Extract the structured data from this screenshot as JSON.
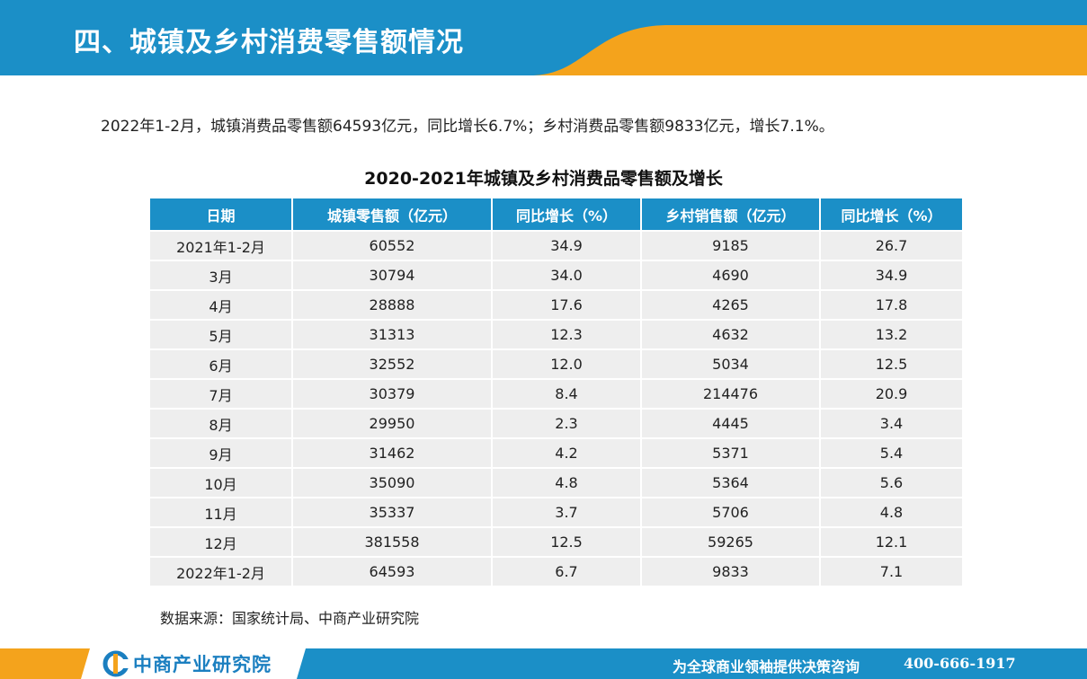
{
  "header": {
    "title": "四、城镇及乡村消费零售额情况"
  },
  "summary": {
    "text": "2022年1-2月，城镇消费品零售额64593亿元，同比增长6.7%；乡村消费品零售额9833亿元，增长7.1%。"
  },
  "table": {
    "title": "2020-2021年城镇及乡村消费品零售额及增长",
    "headers": [
      "日期",
      "城镇零售额（亿元）",
      "同比增长（%）",
      "乡村销售额（亿元）",
      "同比增长（%）"
    ],
    "rows": [
      [
        "2021年1-2月",
        "60552",
        "34.9",
        "9185",
        "26.7"
      ],
      [
        "3月",
        "30794",
        "34.0",
        "4690",
        "34.9"
      ],
      [
        "4月",
        "28888",
        "17.6",
        "4265",
        "17.8"
      ],
      [
        "5月",
        "31313",
        "12.3",
        "4632",
        "13.2"
      ],
      [
        "6月",
        "32552",
        "12.0",
        "5034",
        "12.5"
      ],
      [
        "7月",
        "30379",
        "8.4",
        "214476",
        "20.9"
      ],
      [
        "8月",
        "29950",
        "2.3",
        "4445",
        "3.4"
      ],
      [
        "9月",
        "31462",
        "4.2",
        "5371",
        "5.4"
      ],
      [
        "10月",
        "35090",
        "4.8",
        "5364",
        "5.6"
      ],
      [
        "11月",
        "35337",
        "3.7",
        "5706",
        "4.8"
      ],
      [
        "12月",
        "381558",
        "12.5",
        "59265",
        "12.1"
      ],
      [
        "2022年1-2月",
        "64593",
        "6.7",
        "9833",
        "7.1"
      ]
    ]
  },
  "source": {
    "text": "数据来源：国家统计局、中商产业研究院"
  },
  "footer": {
    "logo_text": "中商产业研究院",
    "slogan": "为全球商业领袖提供决策咨询",
    "phone": "400-666-1917"
  },
  "colors": {
    "primary_blue": "#1b8fc7",
    "accent_orange": "#f4a31c",
    "cell_gray": "#eeeeee"
  },
  "icons": {
    "logo": "zhongshang-logo-icon"
  }
}
